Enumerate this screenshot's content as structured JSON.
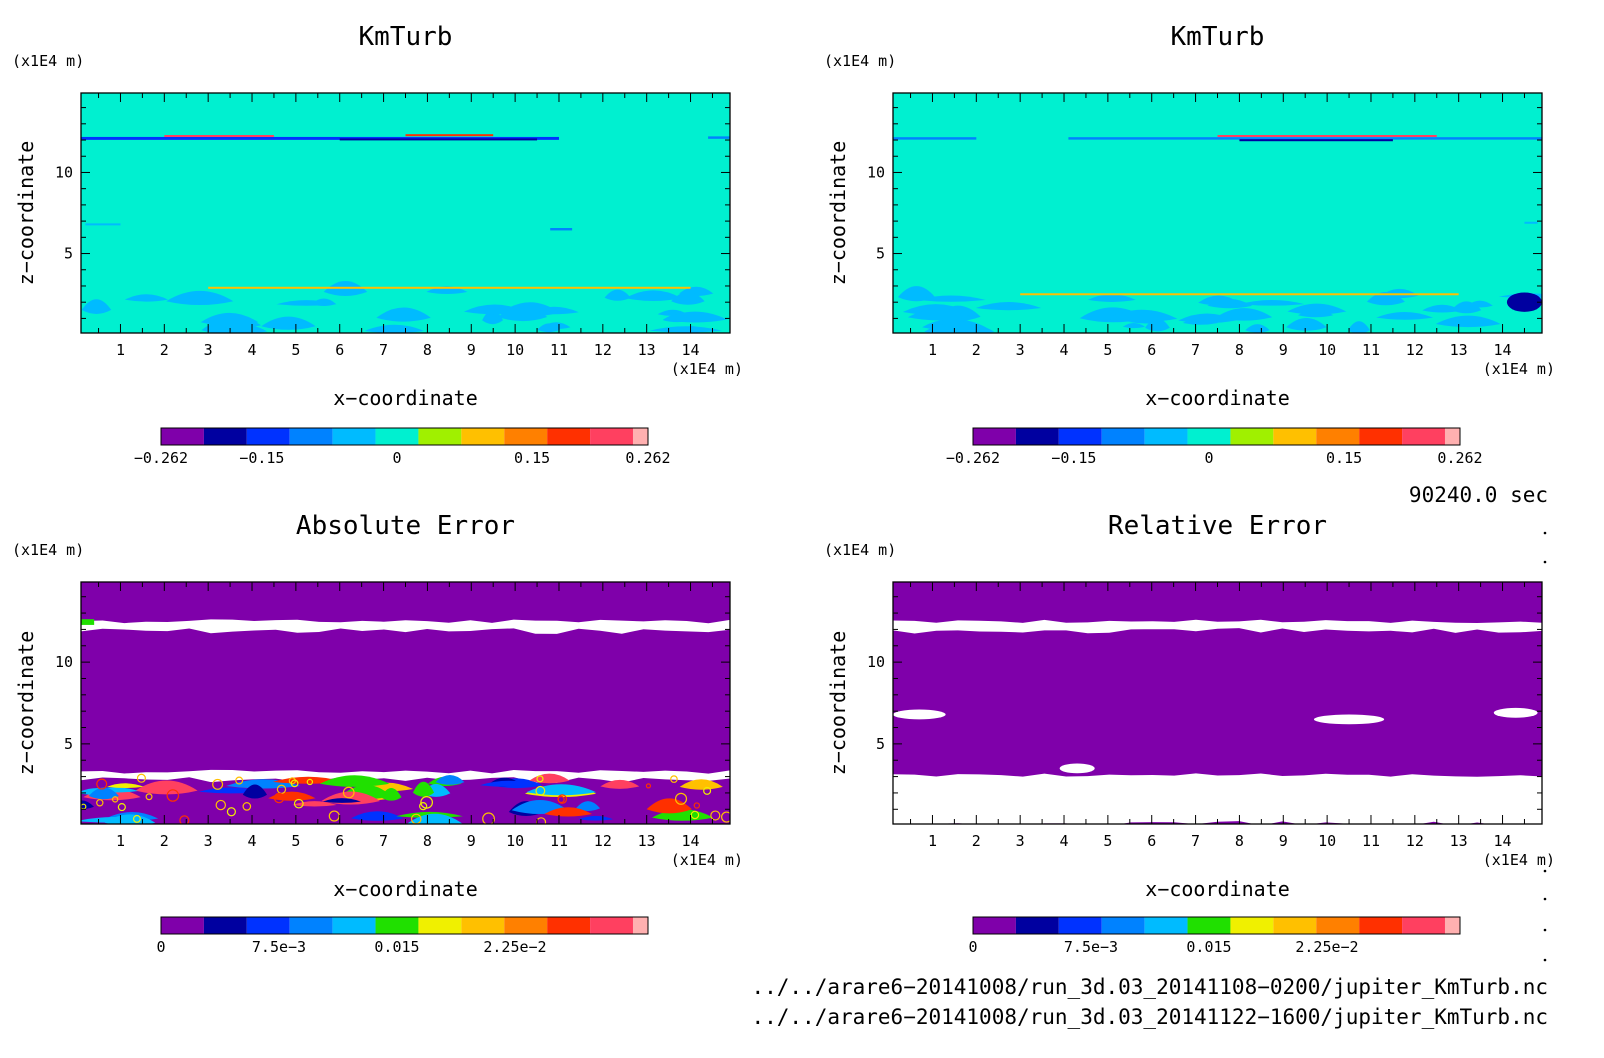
{
  "chart_data": [
    {
      "type": "heatmap",
      "title": "KmTurb",
      "xlabel": "x−coordinate",
      "ylabel": "z−coordinate",
      "x_unit": "(x1E4 m)",
      "y_unit": "(x1E4 m)",
      "xlim": [
        0.1,
        14.9
      ],
      "ylim": [
        0.1,
        14.9
      ],
      "x_ticks": [
        "1",
        "2",
        "3",
        "4",
        "5",
        "6",
        "7",
        "8",
        "9",
        "10",
        "11",
        "12",
        "13",
        "14"
      ],
      "y_ticks": [
        "5",
        "10"
      ],
      "background_level": 5,
      "colorbar": {
        "colors": [
          "#7f00aa",
          "#0000a0",
          "#0032ff",
          "#0082ff",
          "#00bbff",
          "#00f0d0",
          "#a0f000",
          "#ffc000",
          "#ff8000",
          "#ff3000",
          "#ff4060",
          "#ffb0b0"
        ],
        "tick_labels": [
          "−0.262",
          "−0.15",
          "0",
          "0.15",
          "0.262"
        ],
        "tick_values": [
          -0.262,
          -0.15,
          0,
          0.15,
          0.262
        ],
        "range": [
          -0.262,
          0.262
        ]
      },
      "features": [
        {
          "kind": "band",
          "z": 12.1,
          "x0": 0.1,
          "x1": 11.0,
          "level": 2,
          "thickness": 0.18
        },
        {
          "kind": "band",
          "z": 12.25,
          "x0": 2.0,
          "x1": 4.5,
          "level": 10,
          "thickness": 0.12
        },
        {
          "kind": "band",
          "z": 12.3,
          "x0": 7.5,
          "x1": 9.5,
          "level": 9,
          "thickness": 0.12
        },
        {
          "kind": "band",
          "z": 12.05,
          "x0": 6.0,
          "x1": 10.5,
          "level": 1,
          "thickness": 0.1
        },
        {
          "kind": "band",
          "z": 12.15,
          "x0": 14.4,
          "x1": 14.9,
          "level": 3,
          "thickness": 0.15
        },
        {
          "kind": "band",
          "z": 6.8,
          "x0": 0.2,
          "x1": 1.0,
          "level": 4,
          "thickness": 0.12
        },
        {
          "kind": "band",
          "z": 6.5,
          "x0": 10.8,
          "x1": 11.3,
          "level": 3,
          "thickness": 0.15
        },
        {
          "kind": "turb",
          "z0": 0.1,
          "z1": 2.7,
          "density": 34,
          "level": 4,
          "seed": 3
        },
        {
          "kind": "band",
          "z": 2.9,
          "x0": 3.0,
          "x1": 14.0,
          "level": 7,
          "thickness": 0.1
        }
      ]
    },
    {
      "type": "heatmap",
      "title": "KmTurb",
      "xlabel": "x−coordinate",
      "ylabel": "z−coordinate",
      "x_unit": "(x1E4 m)",
      "y_unit": "(x1E4 m)",
      "xlim": [
        0.1,
        14.9
      ],
      "ylim": [
        0.1,
        14.9
      ],
      "x_ticks": [
        "1",
        "2",
        "3",
        "4",
        "5",
        "6",
        "7",
        "8",
        "9",
        "10",
        "11",
        "12",
        "13",
        "14"
      ],
      "y_ticks": [
        "5",
        "10"
      ],
      "background_level": 5,
      "colorbar": {
        "colors": [
          "#7f00aa",
          "#0000a0",
          "#0032ff",
          "#0082ff",
          "#00bbff",
          "#00f0d0",
          "#a0f000",
          "#ffc000",
          "#ff8000",
          "#ff3000",
          "#ff4060",
          "#ffb0b0"
        ],
        "tick_labels": [
          "−0.262",
          "−0.15",
          "0",
          "0.15",
          "0.262"
        ],
        "tick_values": [
          -0.262,
          -0.15,
          0,
          0.15,
          0.262
        ],
        "range": [
          -0.262,
          0.262
        ]
      },
      "features": [
        {
          "kind": "band",
          "z": 12.1,
          "x0": 0.1,
          "x1": 2.0,
          "level": 3,
          "thickness": 0.15
        },
        {
          "kind": "band",
          "z": 12.1,
          "x0": 4.1,
          "x1": 14.9,
          "level": 3,
          "thickness": 0.15
        },
        {
          "kind": "band",
          "z": 12.25,
          "x0": 7.5,
          "x1": 12.5,
          "level": 10,
          "thickness": 0.12
        },
        {
          "kind": "band",
          "z": 12.0,
          "x0": 8.0,
          "x1": 11.5,
          "level": 1,
          "thickness": 0.1
        },
        {
          "kind": "band",
          "z": 6.9,
          "x0": 14.5,
          "x1": 14.8,
          "level": 4,
          "thickness": 0.12
        },
        {
          "kind": "turb",
          "z0": 0.1,
          "z1": 2.5,
          "density": 34,
          "level": 4,
          "seed": 11
        },
        {
          "kind": "band",
          "z": 2.5,
          "x0": 3.0,
          "x1": 13.0,
          "level": 7,
          "thickness": 0.1
        },
        {
          "kind": "blob",
          "x": 14.5,
          "z": 2.0,
          "rx": 0.4,
          "rz": 0.6,
          "level": 1
        }
      ]
    },
    {
      "type": "heatmap",
      "title": "Absolute Error",
      "xlabel": "x−coordinate",
      "ylabel": "z−coordinate",
      "x_unit": "(x1E4 m)",
      "y_unit": "(x1E4 m)",
      "xlim": [
        0.1,
        14.9
      ],
      "ylim": [
        0.1,
        14.9
      ],
      "x_ticks": [
        "1",
        "2",
        "3",
        "4",
        "5",
        "6",
        "7",
        "8",
        "9",
        "10",
        "11",
        "12",
        "13",
        "14"
      ],
      "y_ticks": [
        "5",
        "10"
      ],
      "background_level": 0,
      "colorbar": {
        "colors": [
          "#7f00aa",
          "#0000a0",
          "#0032ff",
          "#0082ff",
          "#00bbff",
          "#20e000",
          "#f0f000",
          "#ffc000",
          "#ff8000",
          "#ff3000",
          "#ff4060",
          "#ffb0b0"
        ],
        "tick_labels": [
          "0",
          "7.5e−3",
          "0.015",
          "2.25e−2"
        ],
        "tick_values": [
          0,
          0.0075,
          0.015,
          0.0225
        ],
        "range": [
          0,
          0.03
        ]
      },
      "features": [
        {
          "kind": "whiteband",
          "z0": 11.9,
          "z1": 12.5,
          "x0": 0.1,
          "x1": 14.9
        },
        {
          "kind": "band",
          "z": 12.45,
          "x0": 0.1,
          "x1": 0.4,
          "level": 5,
          "thickness": 0.35
        },
        {
          "kind": "whiteband",
          "z0": 2.8,
          "z1": 3.3,
          "x0": 0.1,
          "x1": 14.9
        },
        {
          "kind": "turb",
          "z0": 0.1,
          "z1": 2.9,
          "density": 46,
          "level": 2,
          "seed": 7,
          "mixed": true
        }
      ]
    },
    {
      "type": "heatmap",
      "title": "Relative Error",
      "xlabel": "x−coordinate",
      "ylabel": "z−coordinate",
      "x_unit": "(x1E4 m)",
      "y_unit": "(x1E4 m)",
      "xlim": [
        0.1,
        14.9
      ],
      "ylim": [
        0.1,
        14.9
      ],
      "x_ticks": [
        "1",
        "2",
        "3",
        "4",
        "5",
        "6",
        "7",
        "8",
        "9",
        "10",
        "11",
        "12",
        "13",
        "14"
      ],
      "y_ticks": [
        "5",
        "10"
      ],
      "background_level": 0,
      "colorbar": {
        "colors": [
          "#7f00aa",
          "#0000a0",
          "#0032ff",
          "#0082ff",
          "#00bbff",
          "#20e000",
          "#f0f000",
          "#ffc000",
          "#ff8000",
          "#ff3000",
          "#ff4060",
          "#ffb0b0"
        ],
        "tick_labels": [
          "0",
          "7.5e−3",
          "0.015",
          "2.25e−2"
        ],
        "tick_values": [
          0,
          0.0075,
          0.015,
          0.0225
        ],
        "range": [
          0,
          0.03
        ]
      },
      "features": [
        {
          "kind": "whiteband",
          "z0": 11.9,
          "z1": 12.5,
          "x0": 0.1,
          "x1": 14.9
        },
        {
          "kind": "whiteband",
          "z0": 0.1,
          "z1": 3.1,
          "x0": 0.1,
          "x1": 14.9
        },
        {
          "kind": "blob",
          "x": 0.7,
          "z": 6.8,
          "rx": 0.6,
          "rz": 0.3,
          "level": -1
        },
        {
          "kind": "blob",
          "x": 10.5,
          "z": 6.5,
          "rx": 0.8,
          "rz": 0.3,
          "level": -1
        },
        {
          "kind": "blob",
          "x": 14.3,
          "z": 6.9,
          "rx": 0.5,
          "rz": 0.3,
          "level": -1
        },
        {
          "kind": "blob",
          "x": 4.3,
          "z": 3.5,
          "rx": 0.4,
          "rz": 0.3,
          "level": -1
        }
      ]
    }
  ],
  "time_label": "90240.0 sec",
  "file_paths": [
    "../../arare6−20141008/run_3d.03_20141108−0200/jupiter_KmTurb.nc",
    "../../arare6−20141008/run_3d.03_20141122−1600/jupiter_KmTurb.nc"
  ]
}
